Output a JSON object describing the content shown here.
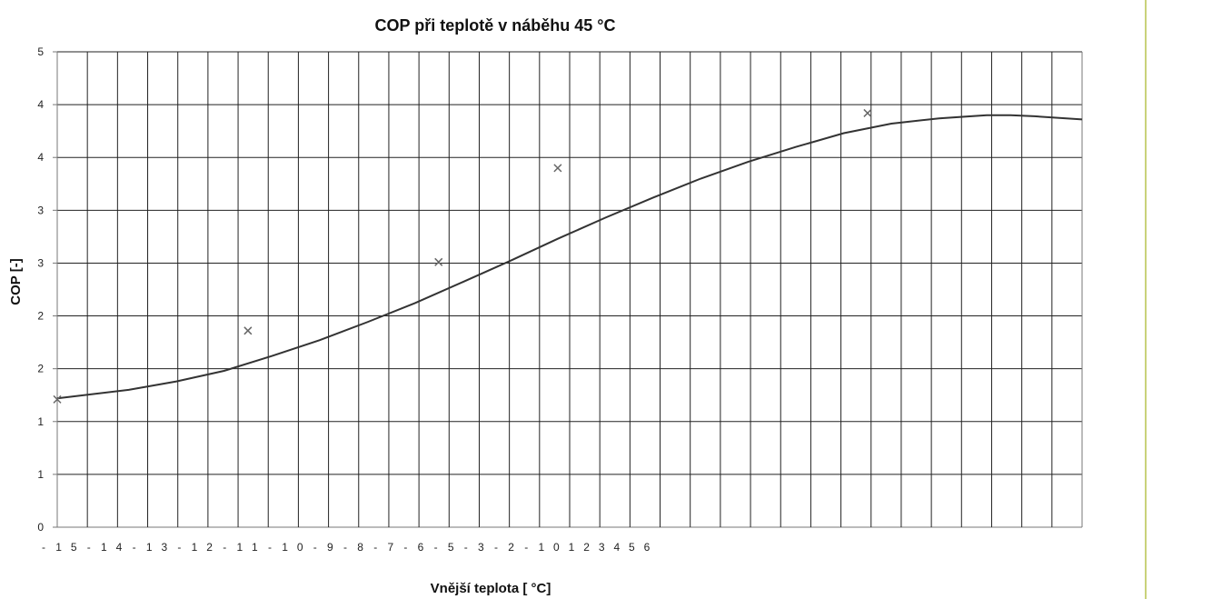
{
  "chart_data": {
    "type": "line",
    "title": "COP při teplotě v náběhu 45 °C",
    "xlabel": "Vnější teplota [ °C]",
    "ylabel": "COP [-]",
    "y_tick_labels": [
      "0",
      "1",
      "1",
      "2",
      "2",
      "3",
      "3",
      "4",
      "4",
      "5"
    ],
    "x_tick_labels": [
      "-",
      "1",
      "5",
      "-",
      "1",
      "4",
      "-",
      "1",
      "3",
      "-",
      "1",
      "2",
      "-",
      "1",
      "1",
      "-",
      "1",
      "0",
      "-",
      "9",
      "-",
      "8",
      "-",
      "7",
      "-",
      "6",
      "-",
      "5",
      "-",
      "3",
      "-",
      "2",
      "-",
      "1",
      "0",
      "1",
      "2",
      "3",
      "4",
      "5",
      "6"
    ],
    "ylim": [
      0,
      4.5
    ],
    "grid": true,
    "series": [
      {
        "kind": "trend-line",
        "points": [
          [
            0,
            1.22
          ],
          [
            3,
            1.3
          ],
          [
            5,
            1.38
          ],
          [
            7,
            1.48
          ],
          [
            9,
            1.62
          ],
          [
            11,
            1.77
          ],
          [
            13,
            1.94
          ],
          [
            15,
            2.12
          ],
          [
            17,
            2.32
          ],
          [
            19,
            2.52
          ],
          [
            21,
            2.73
          ],
          [
            23,
            2.93
          ],
          [
            25,
            3.12
          ],
          [
            27,
            3.3
          ],
          [
            29,
            3.46
          ],
          [
            31,
            3.6
          ],
          [
            33,
            3.73
          ],
          [
            35,
            3.82
          ],
          [
            37,
            3.87
          ],
          [
            39,
            3.9
          ],
          [
            40,
            3.9
          ],
          [
            41,
            3.89
          ],
          [
            43,
            3.86
          ]
        ]
      },
      {
        "kind": "measured",
        "marker": "x",
        "points": [
          [
            0,
            1.21
          ],
          [
            8,
            1.86
          ],
          [
            16,
            2.51
          ],
          [
            21,
            3.4
          ],
          [
            34,
            3.92
          ]
        ]
      }
    ],
    "colors": {
      "line": "#333333",
      "marker": "#666666",
      "grid": "#222222",
      "accent_bar": "#c9d27a"
    }
  }
}
